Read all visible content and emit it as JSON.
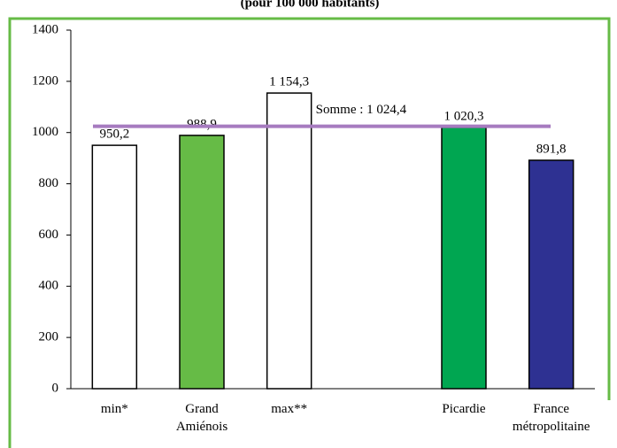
{
  "chart_data": {
    "type": "bar",
    "subtitle": "(pour 100 000 habitants)",
    "categories": [
      "min*",
      "Grand Amiénois",
      "max**",
      null,
      "Picardie",
      "France métropolitaine"
    ],
    "values": [
      950.2,
      988.9,
      1154.3,
      null,
      1020.3,
      891.8
    ],
    "value_labels": [
      "950,2",
      "988,9",
      "1 154,3",
      null,
      "1 020,3",
      "891,8"
    ],
    "colors": [
      "#ffffff",
      "#66bb46",
      "#ffffff",
      null,
      "#00a651",
      "#2e3192"
    ],
    "reference_line": {
      "value": 1024.4,
      "label": "Somme : 1 024,4",
      "color": "#a67bbf"
    },
    "ylim": [
      0,
      1400
    ],
    "yticks": [
      0,
      200,
      400,
      600,
      800,
      1000,
      1200,
      1400
    ],
    "grid": false
  }
}
